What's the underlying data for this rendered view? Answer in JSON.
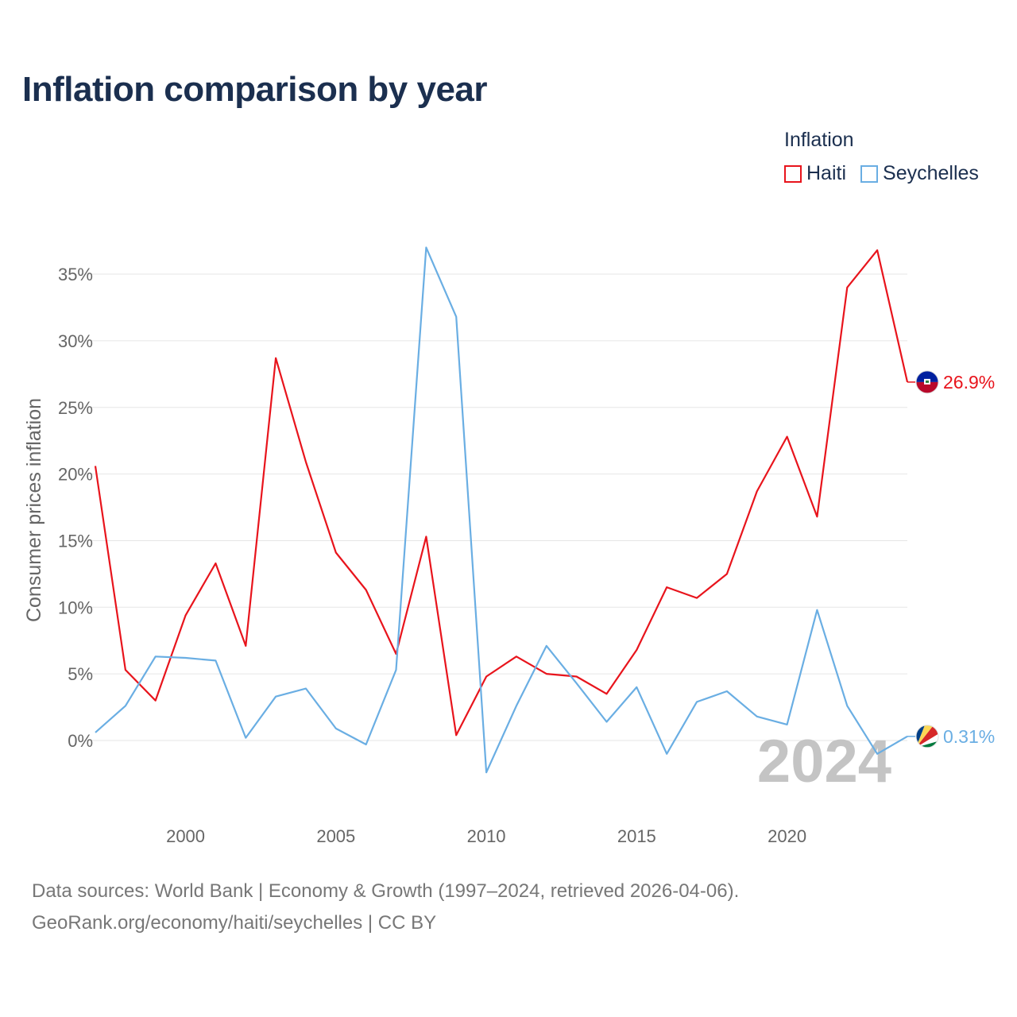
{
  "title": "Inflation comparison by year",
  "legend": {
    "title": "Inflation",
    "items": [
      {
        "name": "Haiti",
        "color": "#e8141c"
      },
      {
        "name": "Seychelles",
        "color": "#6aaee3"
      }
    ]
  },
  "footer": {
    "line1": "Data sources: World Bank | Economy & Growth (1997–2024, retrieved 2026-04-06).",
    "line2": "GeoRank.org/economy/haiti/seychelles | CC BY"
  },
  "chart_data": {
    "type": "line",
    "title": "Inflation comparison by year",
    "xlabel": "",
    "ylabel": "Consumer prices inflation",
    "x": [
      1997,
      1998,
      1999,
      2000,
      2001,
      2002,
      2003,
      2004,
      2005,
      2006,
      2007,
      2008,
      2009,
      2010,
      2011,
      2012,
      2013,
      2014,
      2015,
      2016,
      2017,
      2018,
      2019,
      2020,
      2021,
      2022,
      2023,
      2024
    ],
    "xticks": [
      2000,
      2005,
      2010,
      2015,
      2020
    ],
    "xtick_labels": [
      "2000",
      "2005",
      "2010",
      "2015",
      "2020"
    ],
    "yticks": [
      0,
      5,
      10,
      15,
      20,
      25,
      30,
      35
    ],
    "ytick_labels": [
      "0%",
      "5%",
      "10%",
      "15%",
      "20%",
      "25%",
      "30%",
      "35%"
    ],
    "xlim": [
      1997,
      2024
    ],
    "ylim": [
      -5,
      38
    ],
    "grid": true,
    "legend_position": "top-right",
    "year_label": "2024",
    "series": [
      {
        "name": "Haiti",
        "color": "#e8141c",
        "end_label": "26.9%",
        "flag": "haiti-flag",
        "values": [
          20.6,
          5.3,
          3.0,
          9.4,
          13.3,
          7.1,
          28.7,
          20.9,
          14.1,
          11.3,
          6.5,
          15.3,
          0.4,
          4.8,
          6.3,
          5.0,
          4.8,
          3.5,
          6.8,
          11.5,
          10.7,
          12.5,
          18.7,
          22.8,
          16.8,
          34.0,
          36.8,
          26.9
        ]
      },
      {
        "name": "Seychelles",
        "color": "#6aaee3",
        "end_label": "0.31%",
        "flag": "seychelles-flag",
        "values": [
          0.6,
          2.6,
          6.3,
          6.2,
          6.0,
          0.2,
          3.3,
          3.9,
          0.9,
          -0.3,
          5.3,
          37.0,
          31.8,
          -2.4,
          2.6,
          7.1,
          4.3,
          1.4,
          4.0,
          -1.0,
          2.9,
          3.7,
          1.8,
          1.2,
          9.8,
          2.6,
          -1.0,
          0.31
        ]
      }
    ]
  }
}
